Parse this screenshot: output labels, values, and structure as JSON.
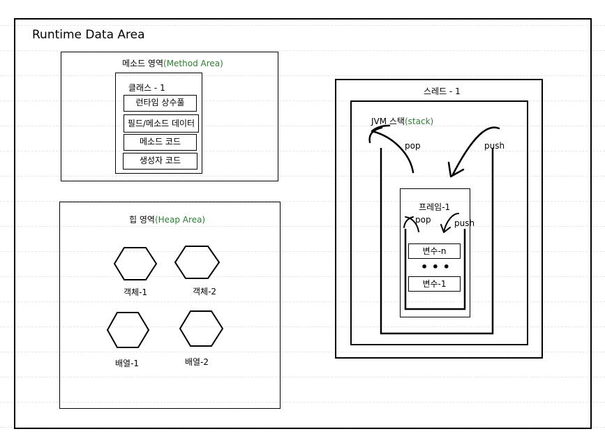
{
  "runtime": {
    "title": "Runtime Data Area"
  },
  "method_area": {
    "title_ko": "메소드 영역",
    "title_en": "(Method Area)",
    "class_label": "클래스 - 1",
    "items": [
      "런타임 상수풀",
      "필드/메소드 데이터",
      "메소드 코드",
      "생성자 코드"
    ]
  },
  "heap_area": {
    "title_ko": "힙 영역",
    "title_en": "(Heap Area)",
    "objects": [
      "객체-1",
      "객체-2",
      "배열-1",
      "배열-2"
    ]
  },
  "thread": {
    "title": "스레드 - 1",
    "stack_label_ko": "JVM 스택",
    "stack_label_en": "(stack)",
    "pop": "pop",
    "push": "push",
    "frame": {
      "title": "프레임-1",
      "pop": "pop",
      "push": "push",
      "vars": [
        "변수-n",
        "변수-1"
      ],
      "ellipsis": "• • •"
    }
  }
}
